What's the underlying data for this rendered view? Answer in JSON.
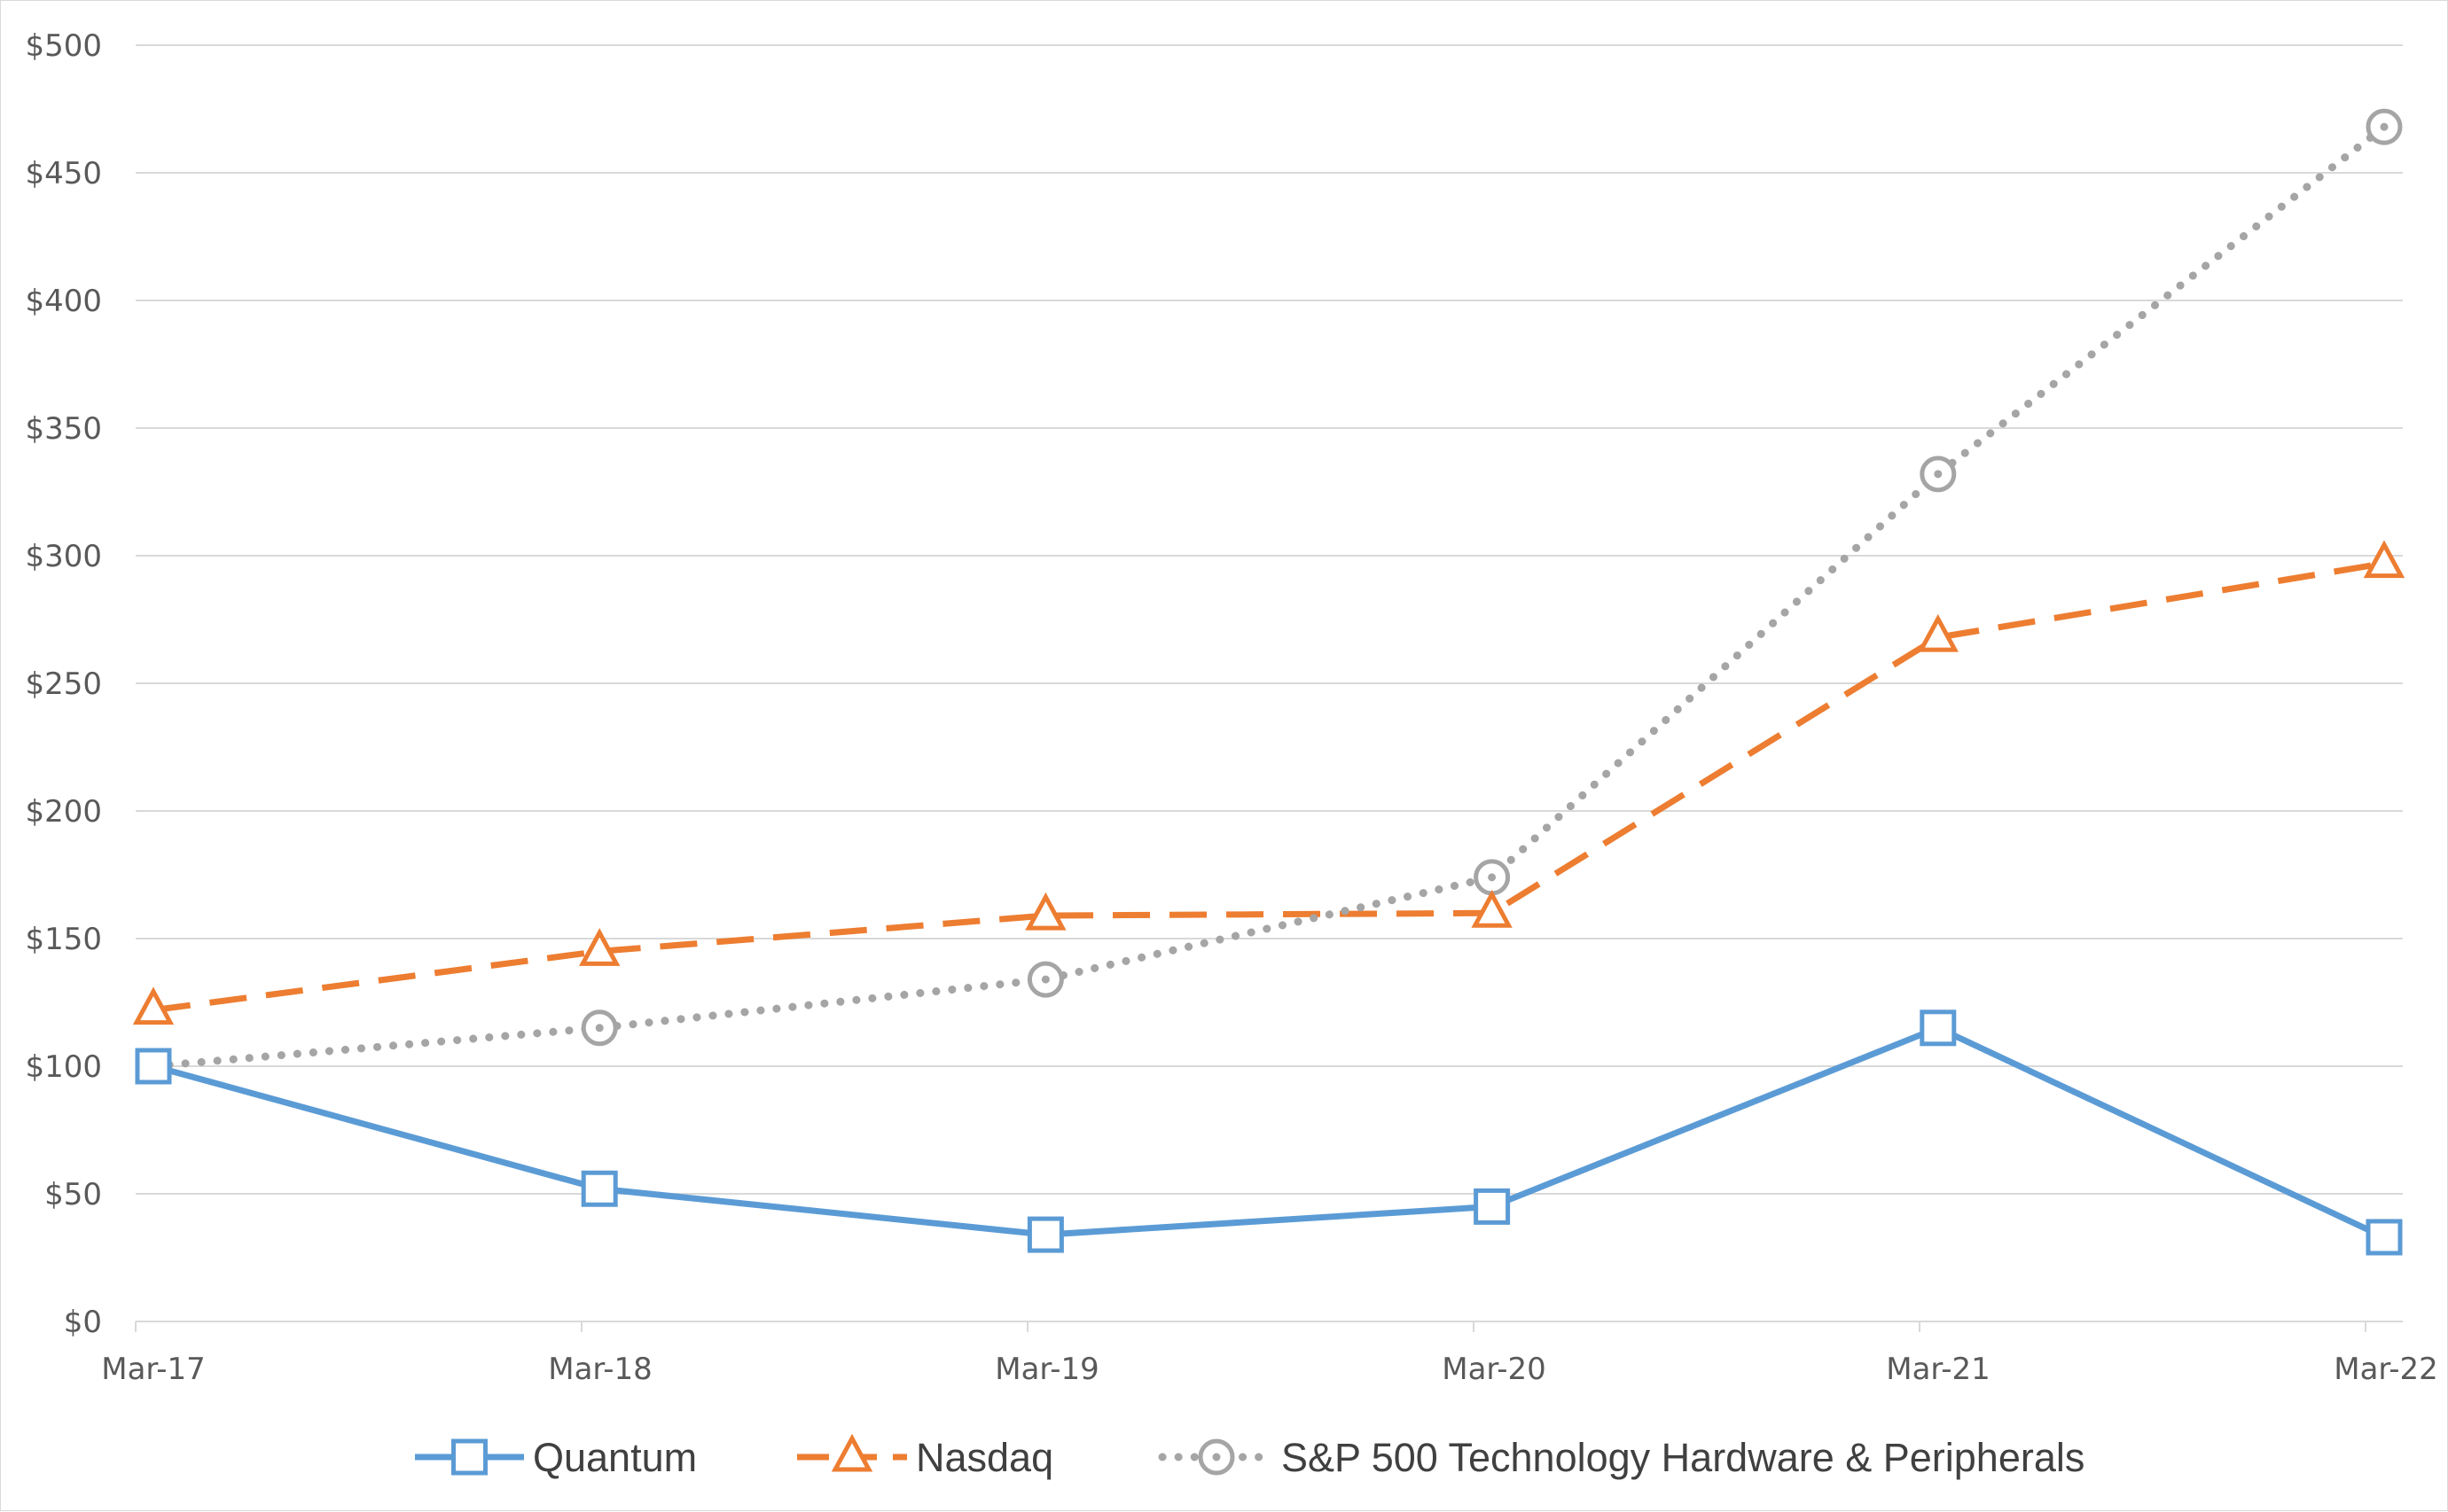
{
  "chart_data": {
    "type": "line",
    "title": "",
    "xlabel": "",
    "ylabel": "",
    "categories": [
      "Mar-17",
      "Mar-18",
      "Mar-19",
      "Mar-20",
      "Mar-21",
      "Mar-22"
    ],
    "ylim": [
      0,
      500
    ],
    "ytick_step": 50,
    "ytick_labels": [
      "$0",
      "$50",
      "$100",
      "$150",
      "$200",
      "$250",
      "$300",
      "$350",
      "$400",
      "$450",
      "$500"
    ],
    "grid": true,
    "legend_position": "bottom",
    "series": [
      {
        "name": "Quantum",
        "values": [
          100,
          52,
          34,
          45,
          115,
          33
        ],
        "color": "#5b9bd5",
        "line_style": "solid",
        "marker": "square"
      },
      {
        "name": "Nasdaq",
        "values": [
          122,
          145,
          159,
          160,
          268,
          297
        ],
        "color": "#ed7d31",
        "line_style": "dashed",
        "marker": "triangle"
      },
      {
        "name": "S&P 500 Technology Hardware & Peripherals",
        "values": [
          100,
          115,
          134,
          174,
          332,
          468
        ],
        "color": "#a5a5a5",
        "line_style": "dotted",
        "marker": "circle"
      }
    ]
  }
}
